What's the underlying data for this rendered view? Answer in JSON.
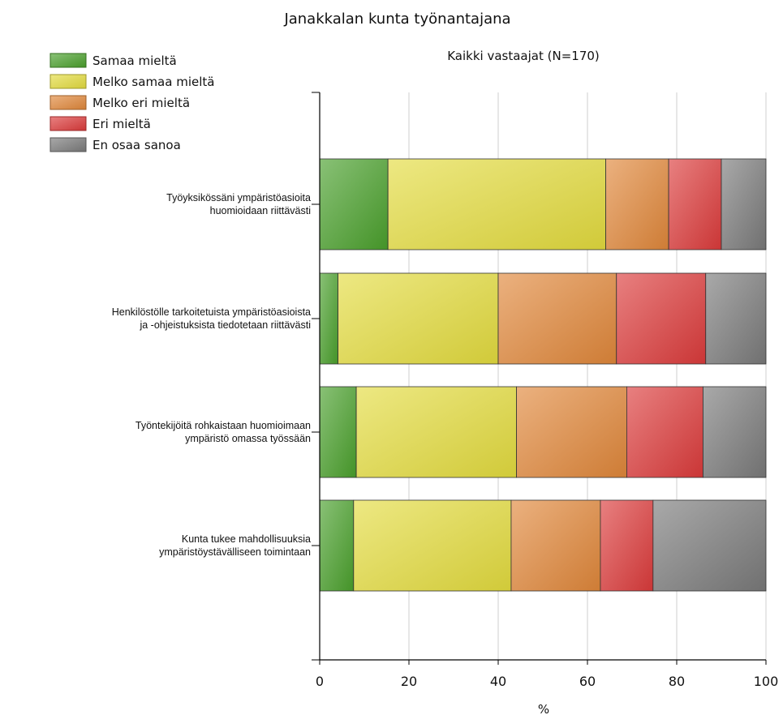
{
  "chart_data": {
    "type": "bar",
    "orientation": "horizontal",
    "stacked": true,
    "title": "Janakkalan kunta työnantajana",
    "subtitle": "Kaikki vastaajat (N=170)",
    "xlabel": "%",
    "xlim": [
      0,
      100
    ],
    "xticks": [
      "0",
      "20",
      "40",
      "60",
      "80",
      "100"
    ],
    "grid": true,
    "legend_position": "top-left",
    "categories": [
      [
        "Työyksikössäni ympäristöasioita",
        "huomioidaan riittävästi"
      ],
      [
        "Henkilöstölle tarkoitetuista ympäristöasioista",
        "ja -ohjeistuksista tiedotetaan riittävästi"
      ],
      [
        "Työntekijöitä rohkaistaan huomioimaan",
        "ympäristö omassa työssään"
      ],
      [
        "Kunta tukee mahdollisuuksia",
        "ympäristöystävälliseen toimintaan"
      ]
    ],
    "series": [
      {
        "name": "Samaa mieltä",
        "color": "#4aa02c",
        "values": [
          15.3,
          4.1,
          8.2,
          7.6
        ]
      },
      {
        "name": "Melko samaa mieltä",
        "color": "#e3dc3e",
        "values": [
          48.8,
          35.9,
          35.9,
          35.3
        ]
      },
      {
        "name": "Melko eri mieltä",
        "color": "#e0873a",
        "values": [
          14.1,
          26.5,
          24.7,
          20.0
        ]
      },
      {
        "name": "Eri mieltä",
        "color": "#dc3b3b",
        "values": [
          11.8,
          20.0,
          17.1,
          11.8
        ]
      },
      {
        "name": "En osaa sanoa",
        "color": "#7a7a7a",
        "values": [
          10.0,
          13.5,
          14.1,
          25.3
        ]
      }
    ]
  }
}
